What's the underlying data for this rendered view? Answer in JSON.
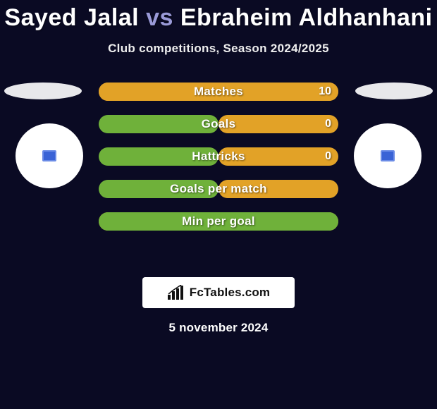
{
  "title": {
    "player1": "Sayed Jalal",
    "vs": "vs",
    "player2": "Ebraheim Aldhanhani"
  },
  "subtitle": "Club competitions, Season 2024/2025",
  "colors": {
    "left_fill": "#6fb13a",
    "right_fill": "#e2a227",
    "pill_bg_default": "#e2a227"
  },
  "stats": [
    {
      "label": "Matches",
      "left_val": "",
      "right_val": "10",
      "left_pct": 0,
      "right_pct": 100,
      "bg": "#e2a227"
    },
    {
      "label": "Goals",
      "left_val": "",
      "right_val": "0",
      "left_pct": 50,
      "right_pct": 50,
      "bg": "#0a0a23"
    },
    {
      "label": "Hattricks",
      "left_val": "",
      "right_val": "0",
      "left_pct": 50,
      "right_pct": 50,
      "bg": "#0a0a23"
    },
    {
      "label": "Goals per match",
      "left_val": "",
      "right_val": "",
      "left_pct": 50,
      "right_pct": 50,
      "bg": "#0a0a23"
    },
    {
      "label": "Min per goal",
      "left_val": "",
      "right_val": "",
      "left_pct": 100,
      "right_pct": 0,
      "bg": "#e2a227"
    }
  ],
  "footer": {
    "brand": "FcTables.com",
    "date": "5 november 2024"
  }
}
